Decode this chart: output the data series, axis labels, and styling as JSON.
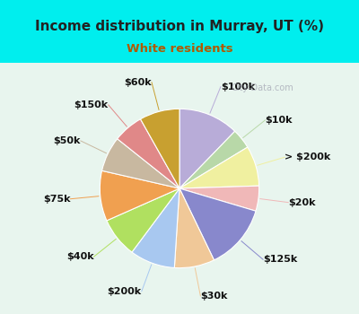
{
  "title": "Income distribution in Murray, UT (%)",
  "subtitle": "White residents",
  "title_color": "#222222",
  "subtitle_color": "#b05a00",
  "background_top": "#00eeee",
  "background_box_top": "#e8f5ee",
  "background_box_bottom": "#c8e8d8",
  "watermark": "City-Data.com",
  "labels": [
    "$100k",
    "$10k",
    "> $200k",
    "$20k",
    "$125k",
    "$30k",
    "$200k",
    "$40k",
    "$75k",
    "$50k",
    "$150k",
    "$60k"
  ],
  "sizes": [
    12,
    4,
    8,
    5,
    13,
    8,
    9,
    8,
    10,
    7,
    6,
    8
  ],
  "colors": [
    "#b8acd8",
    "#b8d8a8",
    "#f0f0a0",
    "#f0b8b8",
    "#8888cc",
    "#f0c898",
    "#a8c8f0",
    "#b0e060",
    "#f0a050",
    "#c8b8a0",
    "#e08888",
    "#c8a030"
  ],
  "startangle": 90,
  "label_fontsize": 8,
  "figsize": [
    4.0,
    3.5
  ],
  "dpi": 100
}
